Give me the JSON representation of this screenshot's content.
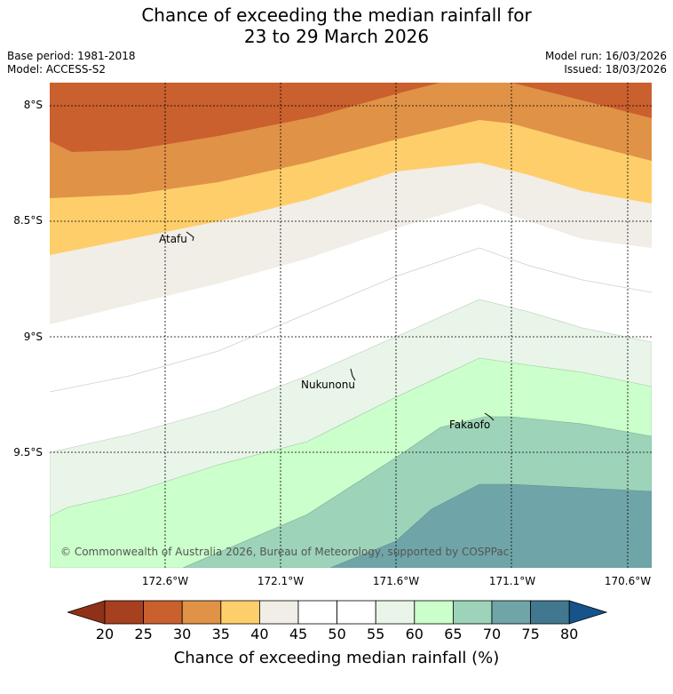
{
  "title": {
    "line1": "Chance of exceeding the median rainfall for",
    "line2": "23 to 29 March 2026"
  },
  "meta": {
    "base_period": "Base period: 1981-2018",
    "model": "Model: ACCESS-S2",
    "model_run": "Model run: 16/03/2026",
    "issued": "Issued: 18/03/2026"
  },
  "lat_labels": [
    "8°S",
    "8.5°S",
    "9°S",
    "9.5°S"
  ],
  "lon_labels": [
    "172.6°W",
    "172.1°W",
    "171.6°W",
    "171.1°W",
    "170.6°W"
  ],
  "places": {
    "atafu": "Atafu",
    "nukunonu": "Nukunonu",
    "fakaofo": "Fakaofo"
  },
  "copyright": "© Commonwealth of Australia 2026, Bureau of Meteorology, supported by COSPPac",
  "colorbar": {
    "ticks": [
      "20",
      "25",
      "30",
      "35",
      "40",
      "45",
      "50",
      "55",
      "60",
      "65",
      "70",
      "75",
      "80"
    ],
    "colors": [
      "#a6401f",
      "#c9602e",
      "#e09247",
      "#fece6a",
      "#f1ede7",
      "#ffffff",
      "#ffffff",
      "#e8f5e8",
      "#cbffcb",
      "#9dd3b9",
      "#6fa5a8",
      "#41788f"
    ],
    "under_color": "#8f3118",
    "over_color": "#15538a",
    "label": "Chance of exceeding median rainfall (%)"
  }
}
